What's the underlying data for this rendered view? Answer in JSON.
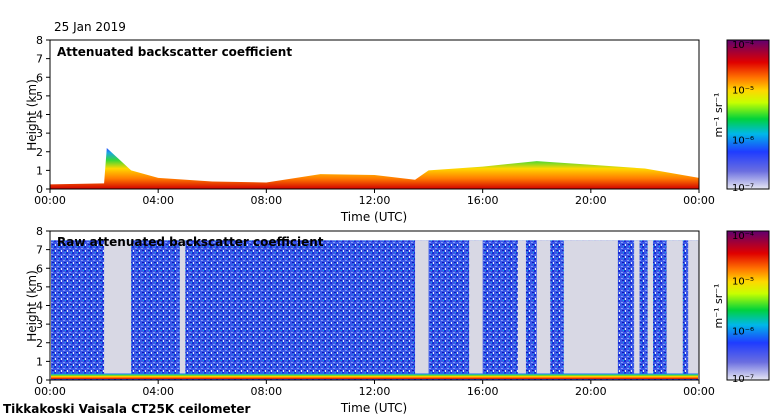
{
  "date": "25 Jan 2019",
  "footer": "Tikkakoski Vaisala CT25K ceilometer",
  "chart_data": [
    {
      "type": "heatmap",
      "title": "Attenuated backscatter coefficient",
      "xlabel": "Time (UTC)",
      "ylabel": "Height (km)",
      "x_ticks": [
        "00:00",
        "04:00",
        "08:00",
        "12:00",
        "16:00",
        "20:00",
        "00:00"
      ],
      "y_ticks": [
        "0",
        "1",
        "2",
        "3",
        "4",
        "5",
        "6",
        "7",
        "8"
      ],
      "xlim_hours": [
        0,
        24
      ],
      "ylim_km": [
        0,
        8
      ],
      "colorbar": {
        "label": "m⁻¹ sr⁻¹",
        "ticks": [
          "10⁻⁴",
          "10⁻⁵",
          "10⁻⁶",
          "10⁻⁷"
        ],
        "scale": "log",
        "range": [
          1e-07,
          0.0001
        ]
      },
      "surface_layer_top_km": [
        {
          "h": 0,
          "km": 0.25
        },
        {
          "h": 2,
          "km": 0.3
        },
        {
          "h": 2.1,
          "km": 2.2
        },
        {
          "h": 3,
          "km": 1.0
        },
        {
          "h": 4,
          "km": 0.6
        },
        {
          "h": 6,
          "km": 0.4
        },
        {
          "h": 8,
          "km": 0.35
        },
        {
          "h": 10,
          "km": 0.8
        },
        {
          "h": 12,
          "km": 0.75
        },
        {
          "h": 13.5,
          "km": 0.5
        },
        {
          "h": 14,
          "km": 1.0
        },
        {
          "h": 16,
          "km": 1.2
        },
        {
          "h": 18,
          "km": 1.5
        },
        {
          "h": 20,
          "km": 1.3
        },
        {
          "h": 22,
          "km": 1.1
        },
        {
          "h": 24,
          "km": 0.6
        }
      ]
    },
    {
      "type": "heatmap",
      "title": "Raw attenuated backscatter coefficient",
      "xlabel": "Time (UTC)",
      "ylabel": "Height (km)",
      "x_ticks": [
        "00:00",
        "04:00",
        "08:00",
        "12:00",
        "16:00",
        "20:00",
        "00:00"
      ],
      "y_ticks": [
        "0",
        "1",
        "2",
        "3",
        "4",
        "5",
        "6",
        "7",
        "8"
      ],
      "xlim_hours": [
        0,
        24
      ],
      "ylim_km": [
        0,
        8
      ],
      "colorbar": {
        "label": "m⁻¹ sr⁻¹",
        "ticks": [
          "10⁻⁴",
          "10⁻⁵",
          "10⁻⁶",
          "10⁻⁷"
        ],
        "scale": "log",
        "range": [
          1e-07,
          0.0001
        ]
      },
      "noise_top_km": 7.5,
      "gap_hours": [
        [
          2.0,
          3.0
        ],
        [
          4.8,
          5.0
        ],
        [
          4.9,
          5.0
        ],
        [
          13.5,
          14.0
        ],
        [
          15.5,
          16.0
        ],
        [
          17.3,
          17.6
        ],
        [
          18.0,
          18.5
        ],
        [
          19.0,
          21.0
        ],
        [
          21.6,
          21.8
        ],
        [
          22.1,
          22.3
        ],
        [
          22.8,
          23.4
        ],
        [
          23.6,
          24.0
        ]
      ]
    }
  ]
}
